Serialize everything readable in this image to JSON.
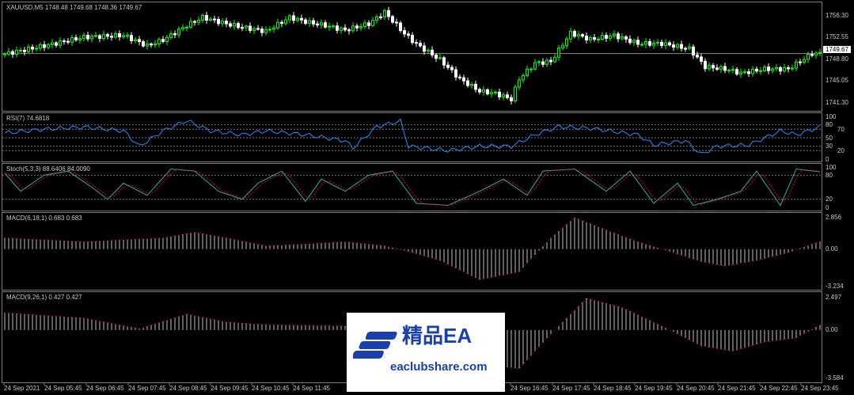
{
  "symbol_label": "XAUUSD,M5  1748.48 1749.68 1748.36 1749.67",
  "current_price": "1749.67",
  "colors": {
    "bull": "#00ff00",
    "bear": "#ffffff",
    "rsi": "#1e90ff",
    "stoch_main": "#20b2aa",
    "stoch_signal": "#ff0000",
    "macd_hist": "#c0c0c0",
    "macd_signal": "#ff0000",
    "grid": "#7a7a7a"
  },
  "price_axis": [
    "1756.30",
    "1752.55",
    "1748.80",
    "1745.05",
    "1741.30"
  ],
  "rsi": {
    "label": "RSI(7) 74.6818",
    "axis": [
      "100",
      "80",
      "70",
      "50",
      "30",
      "20",
      "0"
    ],
    "levels": [
      80,
      70,
      50,
      30,
      20
    ]
  },
  "stoch": {
    "label": "Stoch(5,3,3) 88.6406 84.0090",
    "axis": [
      "100",
      "80",
      "20",
      "0"
    ],
    "levels": [
      80,
      20
    ]
  },
  "macd1": {
    "label": "MACD(6,18,1) 0.683 0.683",
    "axis": [
      "2.856",
      "0.00",
      "-3.234"
    ]
  },
  "macd2": {
    "label": "MACD(9,26,1) 0.427 0.427",
    "axis": [
      "2.497",
      "0.00",
      "-3.584"
    ]
  },
  "time_axis": [
    "24 Sep 2021",
    "24 Sep 05:45",
    "24 Sep 06:45",
    "24 Sep 07:45",
    "24 Sep 08:45",
    "24 Sep 09:45",
    "24 Sep 10:45",
    "24 Sep 11:45",
    "24 Sep 16:45",
    "24 Sep 17:45",
    "24 Sep 18:45",
    "24 Sep 19:45",
    "24 Sep 20:45",
    "24 Sep 21:45",
    "24 Sep 22:45",
    "24 Sep 23:45"
  ],
  "watermark": {
    "title": "精品EA",
    "site": "eaclubshare.com"
  },
  "chart_data": [
    {
      "type": "candlestick",
      "name": "XAUUSD,M5",
      "ylim": [
        1740.0,
        1758.5
      ],
      "x_index": [
        0,
        10,
        20,
        30,
        36,
        40,
        46,
        50,
        56,
        60,
        66,
        72,
        77,
        81,
        86,
        92,
        96,
        101,
        104,
        110,
        115,
        120,
        124,
        128,
        130,
        134,
        138,
        143,
        148,
        154,
        160,
        166,
        173,
        177,
        182,
        186,
        192,
        198,
        204
      ],
      "close": [
        1749.6,
        1751.0,
        1752.5,
        1752.8,
        1751.0,
        1752.0,
        1754.5,
        1755.9,
        1754.8,
        1754.2,
        1753.5,
        1755.9,
        1755.0,
        1754.5,
        1753.7,
        1754.8,
        1756.8,
        1753.1,
        1751.3,
        1748.6,
        1745.3,
        1743.2,
        1742.8,
        1741.8,
        1745.3,
        1748.0,
        1748.3,
        1753.2,
        1752.1,
        1752.8,
        1751.4,
        1751.4,
        1750.5,
        1747.4,
        1747.0,
        1746.3,
        1747.0,
        1747.0,
        1749.67
      ]
    },
    {
      "type": "line",
      "name": "RSI(7)",
      "ylim": [
        0,
        100
      ],
      "x_index": [
        0,
        10,
        20,
        30,
        34,
        40,
        46,
        52,
        60,
        66,
        76,
        86,
        88,
        94,
        100,
        102,
        112,
        120,
        128,
        134,
        140,
        148,
        160,
        164,
        172,
        176,
        180,
        188,
        196,
        200,
        206
      ],
      "values": [
        61,
        70,
        75,
        66,
        30,
        66,
        90,
        66,
        57,
        66,
        57,
        43,
        26,
        76,
        89,
        30,
        20,
        30,
        30,
        57,
        76,
        72,
        57,
        33,
        43,
        11,
        30,
        33,
        66,
        57,
        75
      ]
    },
    {
      "type": "line",
      "name": "Stoch(5,3,3)",
      "ylim": [
        0,
        100
      ],
      "x_index": [
        0,
        4,
        10,
        16,
        22,
        26,
        30,
        36,
        42,
        48,
        54,
        60,
        64,
        70,
        76,
        80,
        86,
        92,
        98,
        104,
        112,
        120,
        126,
        132,
        136,
        144,
        152,
        158,
        164,
        170,
        174,
        180,
        186,
        190,
        196,
        200,
        206
      ],
      "values": [
        85,
        40,
        80,
        90,
        50,
        20,
        60,
        30,
        95,
        90,
        40,
        20,
        60,
        90,
        15,
        70,
        40,
        80,
        90,
        10,
        5,
        40,
        70,
        30,
        90,
        95,
        40,
        90,
        10,
        60,
        5,
        20,
        40,
        90,
        5,
        95,
        88
      ]
    },
    {
      "type": "histogram",
      "name": "MACD(6,18,1)",
      "ylim": [
        -3.234,
        2.856
      ],
      "x_index": [
        0,
        20,
        40,
        48,
        56,
        66,
        76,
        86,
        96,
        102,
        110,
        120,
        130,
        138,
        144,
        152,
        160,
        168,
        176,
        182,
        190,
        198,
        206
      ],
      "values": [
        1.0,
        0.66,
        1.0,
        1.5,
        1.0,
        0.3,
        0.45,
        0.66,
        0.3,
        -0.2,
        -1.0,
        -2.7,
        -2.0,
        1.0,
        2.8,
        1.7,
        0.66,
        -0.2,
        -1.1,
        -1.5,
        -1.0,
        -0.3,
        0.7
      ]
    },
    {
      "type": "histogram",
      "name": "MACD(9,26,1)",
      "ylim": [
        -3.584,
        2.497
      ],
      "x_index": [
        0,
        20,
        34,
        46,
        56,
        66,
        86,
        104,
        120,
        130,
        138,
        147,
        156,
        166,
        176,
        184,
        192,
        200,
        206
      ],
      "values": [
        1.3,
        0.9,
        0.1,
        1.2,
        0.6,
        0.4,
        0.3,
        -0.9,
        -2.6,
        -2.9,
        -0.3,
        2.4,
        1.7,
        0.3,
        -1.2,
        -1.6,
        -0.9,
        -0.6,
        0.4
      ]
    }
  ]
}
